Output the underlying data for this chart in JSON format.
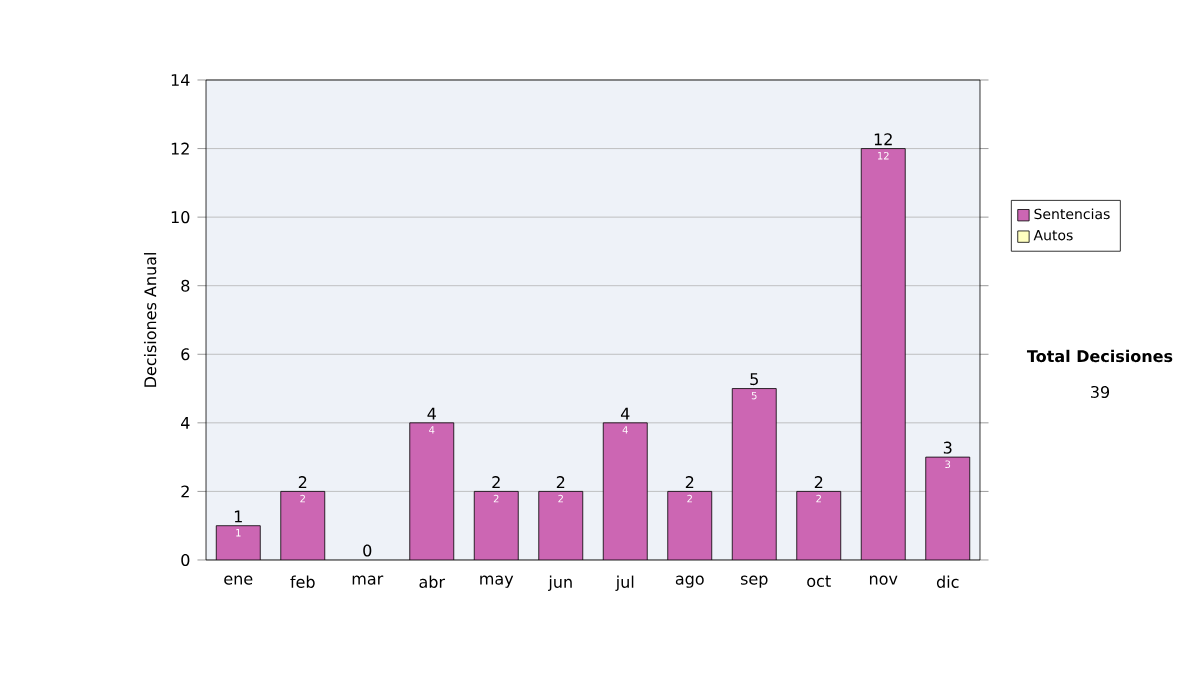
{
  "chart_data": {
    "type": "bar",
    "ylabel": "Decisiones Anual",
    "categories": [
      "ene",
      "feb",
      "mar",
      "abr",
      "may",
      "jun",
      "jul",
      "ago",
      "sep",
      "oct",
      "nov",
      "dic"
    ],
    "series": [
      {
        "name": "Sentencias",
        "color": "#cc66b3",
        "values": [
          1,
          2,
          0,
          4,
          2,
          2,
          4,
          2,
          5,
          2,
          12,
          3
        ],
        "value_labels": [
          "1",
          "2",
          null,
          "4",
          "2",
          "2",
          "4",
          "2",
          "5",
          "2",
          "12",
          "3"
        ]
      },
      {
        "name": "Autos",
        "color": "#ffffc0",
        "values": [
          null,
          null,
          null,
          null,
          null,
          null,
          null,
          null,
          null,
          null,
          null,
          null
        ]
      }
    ],
    "stacked": true,
    "totals": [
      "1",
      "2",
      "0",
      "4",
      "2",
      "2",
      "4",
      "2",
      "5",
      "2",
      "12",
      "3"
    ],
    "ylim": [
      0,
      14
    ],
    "yticks": [
      0,
      2,
      4,
      6,
      8,
      10,
      12,
      14
    ],
    "grid": "y",
    "legend": "right",
    "annotations": [
      "Total Decisiones",
      "39"
    ]
  }
}
